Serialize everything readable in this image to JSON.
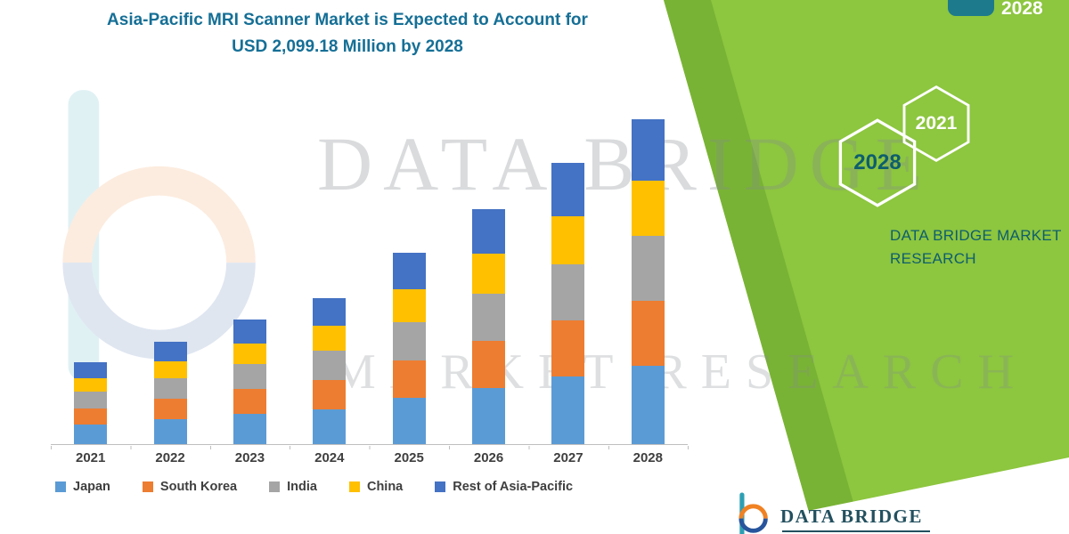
{
  "title": {
    "line1": "Asia-Pacific MRI Scanner Market is Expected to Account for",
    "line2": "USD 2,099.18 Million by 2028"
  },
  "chart_data": {
    "type": "bar",
    "stacked": true,
    "title": "Asia-Pacific MRI Scanner Market is Expected to Account for USD 2,099.18 Million by 2028",
    "categories": [
      "2021",
      "2022",
      "2023",
      "2024",
      "2025",
      "2026",
      "2027",
      "2028"
    ],
    "series": [
      {
        "name": "Japan",
        "color": "#5B9BD5",
        "values": [
          127,
          159,
          193,
          226,
          297,
          364,
          436,
          504
        ]
      },
      {
        "name": "South Korea",
        "color": "#ED7D31",
        "values": [
          106,
          132,
          161,
          189,
          247,
          304,
          363,
          420
        ]
      },
      {
        "name": "India",
        "color": "#A5A5A5",
        "values": [
          106,
          132,
          161,
          189,
          247,
          304,
          363,
          420
        ]
      },
      {
        "name": "China",
        "color": "#FFC000",
        "values": [
          90,
          112,
          137,
          160,
          210,
          258,
          309,
          357
        ]
      },
      {
        "name": "Rest of Asia-Pacific",
        "color": "#4472C4",
        "values": [
          100,
          126,
          154,
          179,
          235,
          288,
          346,
          398.18
        ]
      }
    ],
    "estimated_totals": [
      529,
      661,
      806,
      943,
      1236,
      1518,
      1817,
      2099.18
    ],
    "units": "USD Million",
    "ylim": [
      0,
      2099.18
    ],
    "grid": false,
    "y_axis_visible": false,
    "legend_position": "bottom"
  },
  "watermark": {
    "brand_top": "DATA BRIDGE",
    "brand_bottom": "MARKET RESEARCH"
  },
  "panel": {
    "hex_year_large": "2028",
    "hex_year_small": "2021",
    "top_right_year": "2028",
    "brand_line1": "DATA BRIDGE MARKET",
    "brand_line2": "RESEARCH",
    "green": "#8DC63F",
    "green_dark": "#79B335",
    "teal": "#1D7A8C"
  },
  "footer": {
    "brand": "DATA BRIDGE"
  }
}
